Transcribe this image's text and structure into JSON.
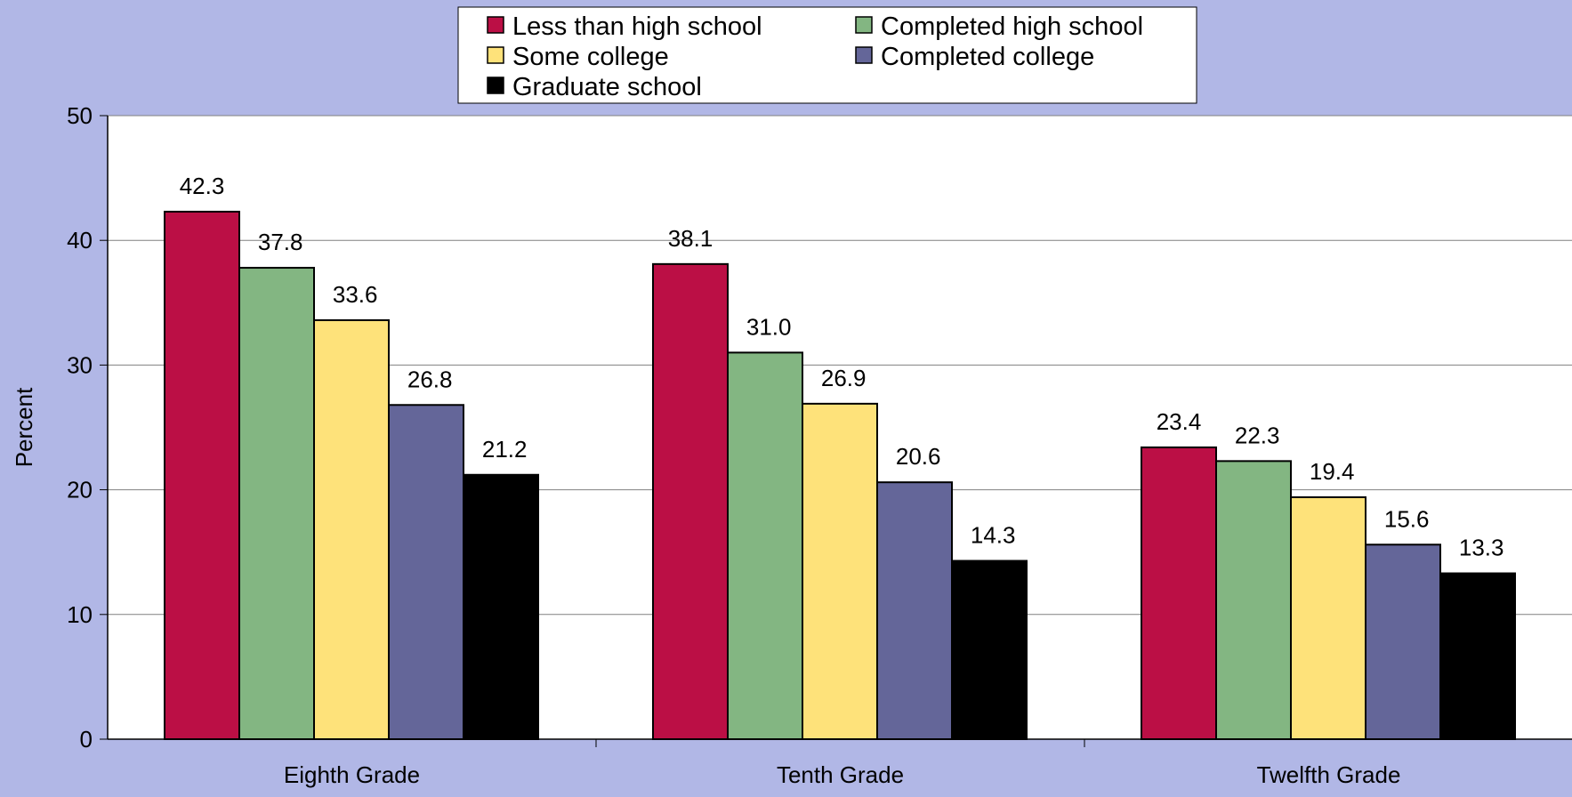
{
  "chart_data": {
    "type": "bar",
    "title": "",
    "xlabel": "",
    "ylabel": "Percent",
    "ylim": [
      0,
      50
    ],
    "yticks": [
      0,
      10,
      20,
      30,
      40,
      50
    ],
    "grid": true,
    "legend_position": "top-center",
    "categories": [
      "Eighth Grade",
      "Tenth Grade",
      "Twelfth Grade"
    ],
    "series": [
      {
        "name": "Less than high school",
        "color": "#bb0f45",
        "values": [
          42.3,
          38.1,
          23.4
        ],
        "labels": [
          "42.3",
          "38.1",
          "23.4"
        ]
      },
      {
        "name": "Completed high school",
        "color": "#83b682",
        "values": [
          37.8,
          31.0,
          22.3
        ],
        "labels": [
          "37.8",
          "31.0",
          "22.3"
        ]
      },
      {
        "name": "Some college",
        "color": "#fee27a",
        "values": [
          33.6,
          26.9,
          19.4
        ],
        "labels": [
          "33.6",
          "26.9",
          "19.4"
        ]
      },
      {
        "name": "Completed college",
        "color": "#646699",
        "values": [
          26.8,
          20.6,
          15.6
        ],
        "labels": [
          "26.8",
          "20.6",
          "15.6"
        ]
      },
      {
        "name": "Graduate school",
        "color": "#000000",
        "values": [
          21.2,
          14.3,
          13.3
        ],
        "labels": [
          "21.2",
          "14.3",
          "13.3"
        ]
      }
    ],
    "colors": {
      "page_background": "#b1b7e6",
      "plot_background": "#ffffff",
      "gridline": "#808080"
    }
  }
}
